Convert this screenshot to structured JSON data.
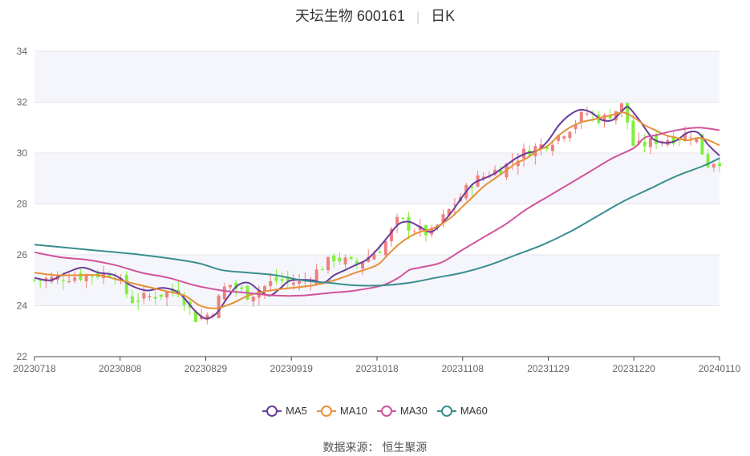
{
  "title": "天坛生物 600161",
  "title_period": "日K",
  "source": "数据来源： 恒生聚源",
  "chart_data": {
    "type": "candlestick",
    "y_range": [
      22,
      34
    ],
    "y_ticks": [
      "22",
      "24",
      "26",
      "28",
      "30",
      "32",
      "34"
    ],
    "x_labels": [
      "20230718",
      "20230808",
      "20230829",
      "20230919",
      "20231018",
      "20231108",
      "20231129",
      "20231220",
      "20240110"
    ],
    "up_color": "#f07f7f",
    "down_color": "#7ff03b",
    "candle_count": 120,
    "candle_anchors": [
      [
        0,
        25.0
      ],
      [
        15,
        25.3
      ],
      [
        18,
        24.2
      ],
      [
        27,
        24.6
      ],
      [
        30,
        23.5
      ],
      [
        33,
        23.7
      ],
      [
        36,
        24.9
      ],
      [
        40,
        24.4
      ],
      [
        45,
        25.0
      ],
      [
        50,
        24.9
      ],
      [
        56,
        25.9
      ],
      [
        60,
        25.6
      ],
      [
        65,
        26.3
      ],
      [
        68,
        27.4
      ],
      [
        70,
        27.1
      ],
      [
        74,
        26.8
      ],
      [
        78,
        27.9
      ],
      [
        82,
        28.9
      ],
      [
        88,
        29.5
      ],
      [
        92,
        30.1
      ],
      [
        96,
        30.4
      ],
      [
        100,
        31.0
      ],
      [
        103,
        31.6
      ],
      [
        106,
        31.3
      ],
      [
        110,
        31.9
      ],
      [
        112,
        30.2
      ],
      [
        116,
        30.5
      ],
      [
        120,
        30.6
      ],
      [
        123,
        30.8
      ],
      [
        126,
        29.5
      ],
      [
        127,
        29.7
      ]
    ],
    "series": [
      {
        "name": "MA5",
        "color": "#6a3d9a",
        "points": [
          [
            0,
            25.1
          ],
          [
            3,
            25.0
          ],
          [
            6,
            25.3
          ],
          [
            9,
            25.5
          ],
          [
            12,
            25.3
          ],
          [
            15,
            25.2
          ],
          [
            18,
            24.8
          ],
          [
            21,
            24.6
          ],
          [
            24,
            24.7
          ],
          [
            27,
            24.5
          ],
          [
            30,
            23.8
          ],
          [
            32,
            23.5
          ],
          [
            34,
            23.7
          ],
          [
            36,
            24.3
          ],
          [
            38,
            24.8
          ],
          [
            40,
            24.9
          ],
          [
            42,
            24.6
          ],
          [
            44,
            24.4
          ],
          [
            46,
            24.7
          ],
          [
            48,
            25.0
          ],
          [
            52,
            25.0
          ],
          [
            54,
            24.9
          ],
          [
            56,
            25.2
          ],
          [
            58,
            25.4
          ],
          [
            60,
            25.6
          ],
          [
            62,
            25.8
          ],
          [
            64,
            26.2
          ],
          [
            66,
            26.7
          ],
          [
            68,
            27.2
          ],
          [
            70,
            27.3
          ],
          [
            72,
            27.1
          ],
          [
            74,
            26.9
          ],
          [
            76,
            27.2
          ],
          [
            78,
            27.7
          ],
          [
            80,
            28.3
          ],
          [
            82,
            28.8
          ],
          [
            84,
            29.0
          ],
          [
            86,
            29.2
          ],
          [
            88,
            29.5
          ],
          [
            90,
            29.8
          ],
          [
            92,
            30.0
          ],
          [
            94,
            30.1
          ],
          [
            96,
            30.5
          ],
          [
            98,
            31.1
          ],
          [
            100,
            31.5
          ],
          [
            102,
            31.7
          ],
          [
            104,
            31.6
          ],
          [
            106,
            31.3
          ],
          [
            108,
            31.3
          ],
          [
            110,
            31.7
          ],
          [
            111,
            31.8
          ],
          [
            113,
            31.3
          ],
          [
            115,
            30.7
          ],
          [
            116,
            30.5
          ],
          [
            118,
            30.4
          ],
          [
            120,
            30.5
          ],
          [
            122,
            30.8
          ],
          [
            124,
            30.8
          ],
          [
            126,
            30.3
          ],
          [
            128,
            29.9
          ]
        ]
      },
      {
        "name": "MA10",
        "color": "#e69138",
        "points": [
          [
            0,
            25.3
          ],
          [
            4,
            25.2
          ],
          [
            8,
            25.2
          ],
          [
            12,
            25.2
          ],
          [
            16,
            25.0
          ],
          [
            20,
            24.8
          ],
          [
            24,
            24.6
          ],
          [
            28,
            24.4
          ],
          [
            31,
            24.0
          ],
          [
            34,
            23.9
          ],
          [
            37,
            24.1
          ],
          [
            40,
            24.4
          ],
          [
            44,
            24.6
          ],
          [
            48,
            24.7
          ],
          [
            52,
            24.8
          ],
          [
            56,
            25.0
          ],
          [
            60,
            25.3
          ],
          [
            64,
            25.6
          ],
          [
            66,
            26.0
          ],
          [
            68,
            26.4
          ],
          [
            70,
            26.7
          ],
          [
            72,
            26.9
          ],
          [
            74,
            27.0
          ],
          [
            76,
            27.2
          ],
          [
            78,
            27.5
          ],
          [
            80,
            27.9
          ],
          [
            82,
            28.3
          ],
          [
            84,
            28.7
          ],
          [
            86,
            29.0
          ],
          [
            88,
            29.3
          ],
          [
            90,
            29.6
          ],
          [
            92,
            29.8
          ],
          [
            94,
            30.1
          ],
          [
            96,
            30.3
          ],
          [
            98,
            30.7
          ],
          [
            100,
            31.0
          ],
          [
            102,
            31.2
          ],
          [
            104,
            31.3
          ],
          [
            106,
            31.4
          ],
          [
            108,
            31.5
          ],
          [
            110,
            31.6
          ],
          [
            112,
            31.4
          ],
          [
            114,
            31.1
          ],
          [
            116,
            30.9
          ],
          [
            118,
            30.7
          ],
          [
            120,
            30.6
          ],
          [
            122,
            30.5
          ],
          [
            124,
            30.6
          ],
          [
            126,
            30.5
          ],
          [
            128,
            30.3
          ]
        ]
      },
      {
        "name": "MA30",
        "color": "#d0539b",
        "points": [
          [
            0,
            26.1
          ],
          [
            5,
            25.9
          ],
          [
            10,
            25.8
          ],
          [
            15,
            25.6
          ],
          [
            20,
            25.3
          ],
          [
            25,
            25.1
          ],
          [
            30,
            24.8
          ],
          [
            35,
            24.6
          ],
          [
            40,
            24.5
          ],
          [
            45,
            24.4
          ],
          [
            50,
            24.4
          ],
          [
            55,
            24.5
          ],
          [
            60,
            24.6
          ],
          [
            65,
            24.8
          ],
          [
            68,
            25.1
          ],
          [
            70,
            25.4
          ],
          [
            72,
            25.5
          ],
          [
            76,
            25.7
          ],
          [
            80,
            26.2
          ],
          [
            84,
            26.7
          ],
          [
            88,
            27.2
          ],
          [
            92,
            27.8
          ],
          [
            96,
            28.3
          ],
          [
            100,
            28.8
          ],
          [
            104,
            29.3
          ],
          [
            108,
            29.8
          ],
          [
            112,
            30.2
          ],
          [
            114,
            30.6
          ],
          [
            116,
            30.7
          ],
          [
            120,
            30.9
          ],
          [
            124,
            31.0
          ],
          [
            128,
            30.9
          ]
        ]
      },
      {
        "name": "MA60",
        "color": "#3a8e8e",
        "points": [
          [
            0,
            26.4
          ],
          [
            10,
            26.2
          ],
          [
            20,
            26.0
          ],
          [
            30,
            25.7
          ],
          [
            35,
            25.4
          ],
          [
            40,
            25.3
          ],
          [
            45,
            25.2
          ],
          [
            50,
            25.0
          ],
          [
            55,
            24.9
          ],
          [
            60,
            24.8
          ],
          [
            65,
            24.8
          ],
          [
            70,
            24.9
          ],
          [
            75,
            25.1
          ],
          [
            80,
            25.3
          ],
          [
            85,
            25.6
          ],
          [
            90,
            26.0
          ],
          [
            95,
            26.4
          ],
          [
            100,
            26.9
          ],
          [
            105,
            27.5
          ],
          [
            110,
            28.1
          ],
          [
            115,
            28.6
          ],
          [
            120,
            29.1
          ],
          [
            125,
            29.5
          ],
          [
            128,
            29.8
          ]
        ]
      }
    ]
  }
}
